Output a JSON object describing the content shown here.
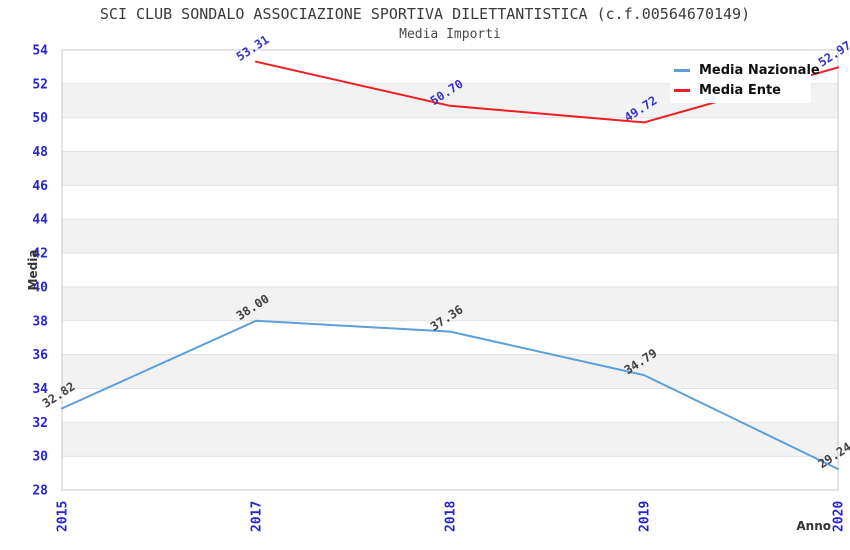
{
  "header": {
    "title": "SCI CLUB SONDALO ASSOCIAZIONE SPORTIVA DILETTANTISTICA (c.f.00564670149)",
    "subtitle": "Media Importi"
  },
  "chart_data": {
    "type": "line",
    "title": "SCI CLUB SONDALO ASSOCIAZIONE SPORTIVA DILETTANTISTICA (c.f.00564670149)",
    "subtitle": "Media Importi",
    "categories": [
      "2015",
      "2017",
      "2018",
      "2019",
      "2020"
    ],
    "series": [
      {
        "name": "Media Nazionale",
        "color": "#5d9fdb",
        "label_color": "#3f3f3f",
        "values": [
          32.82,
          38.0,
          37.36,
          34.79,
          29.24
        ]
      },
      {
        "name": "Media Ente",
        "color": "#ee1d23",
        "label_color": "#3535c0",
        "values": [
          null,
          53.31,
          50.7,
          49.72,
          52.97
        ]
      }
    ],
    "xlabel": "Anno",
    "ylabel": "Media",
    "ylim": [
      28,
      54
    ],
    "ytick_step": 2,
    "grid": "horizontal gridlines with alternating band fill",
    "legend_position": "top-right",
    "colors": {
      "axis_tick_label": "#2626cf",
      "band_fill": "#f2f2f2",
      "gridline": "#e2e2e2",
      "plot_border": "#c8c8c8",
      "title_color": "#3a3a3a"
    }
  }
}
